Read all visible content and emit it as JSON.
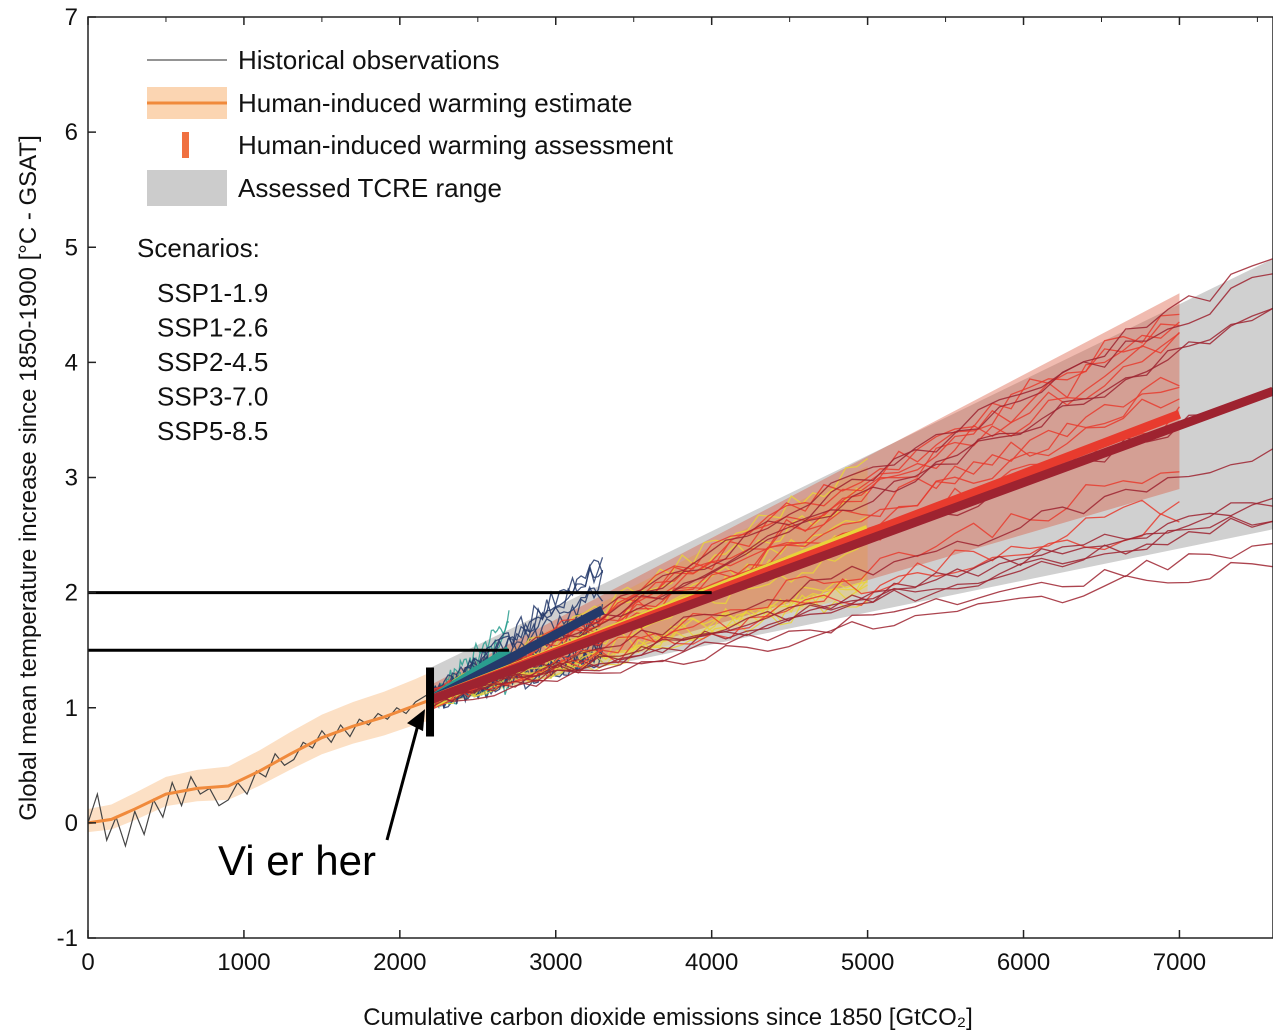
{
  "chart_data": {
    "type": "line",
    "xlabel": "Cumulative carbon dioxide emissions since 1850 [GtCO₂]",
    "ylabel": "Global mean temperature increase since 1850-1900 [°C - GSAT]",
    "xlim": [
      0,
      7600
    ],
    "ylim": [
      -1,
      7
    ],
    "x_ticks": [
      0,
      1000,
      2000,
      3000,
      4000,
      5000,
      6000,
      7000
    ],
    "y_ticks": [
      -1,
      0,
      1,
      2,
      3,
      4,
      5,
      6,
      7
    ],
    "grid": false,
    "legend": {
      "position": "top-left",
      "entries": [
        {
          "label": "Historical observations",
          "color": "#555555"
        },
        {
          "label": "Human-induced warming estimate",
          "color": "#f08a3c"
        },
        {
          "label": "Human-induced warming assessment",
          "color": "#f07040"
        },
        {
          "label": "Assessed TCRE range",
          "color": "#cccccc"
        }
      ],
      "scenarios_title": "Scenarios:",
      "scenarios": [
        {
          "name": "SSP1-1.9",
          "color": "#2a9d8f"
        },
        {
          "name": "SSP1-2.6",
          "color": "#243a6b"
        },
        {
          "name": "SSP2-4.5",
          "color": "#e8d33a"
        },
        {
          "name": "SSP3-7.0",
          "color": "#e83b2e"
        },
        {
          "name": "SSP5-8.5",
          "color": "#9e2330"
        }
      ]
    },
    "tcre_range": {
      "x": [
        2200,
        7600
      ],
      "lower": [
        1.05,
        2.55
      ],
      "upper": [
        1.35,
        4.9
      ]
    },
    "human_induced_estimate": {
      "x": [
        0,
        150,
        300,
        500,
        700,
        900,
        1100,
        1300,
        1500,
        1700,
        1900,
        2100,
        2200
      ],
      "y": [
        0.0,
        0.03,
        0.12,
        0.25,
        0.3,
        0.32,
        0.45,
        0.6,
        0.74,
        0.84,
        0.92,
        1.02,
        1.07
      ]
    },
    "historical_observations": {
      "x": [
        0,
        60,
        120,
        180,
        240,
        300,
        360,
        420,
        480,
        540,
        600,
        660,
        720,
        780,
        840,
        900,
        960,
        1020,
        1080,
        1140,
        1200,
        1260,
        1320,
        1380,
        1440,
        1500,
        1560,
        1620,
        1680,
        1740,
        1800,
        1860,
        1920,
        1980,
        2040,
        2100,
        2160,
        2220
      ],
      "y": [
        0.0,
        0.25,
        -0.15,
        0.05,
        -0.2,
        0.1,
        -0.1,
        0.2,
        0.05,
        0.35,
        0.15,
        0.4,
        0.25,
        0.3,
        0.15,
        0.2,
        0.35,
        0.25,
        0.45,
        0.4,
        0.6,
        0.5,
        0.55,
        0.7,
        0.65,
        0.8,
        0.7,
        0.85,
        0.75,
        0.9,
        0.85,
        0.95,
        0.9,
        1.0,
        0.95,
        1.05,
        1.1,
        1.15
      ]
    },
    "scenario_central": [
      {
        "name": "SSP1-1.9",
        "color": "#2a9d8f",
        "x": [
          2200,
          2700
        ],
        "y": [
          1.07,
          1.5
        ]
      },
      {
        "name": "SSP1-2.6",
        "color": "#243a6b",
        "x": [
          2200,
          3300
        ],
        "y": [
          1.07,
          1.85
        ]
      },
      {
        "name": "SSP2-4.5",
        "color": "#e8d33a",
        "x": [
          2200,
          5000
        ],
        "y": [
          1.07,
          2.55
        ]
      },
      {
        "name": "SSP3-7.0",
        "color": "#e83b2e",
        "x": [
          2200,
          7000
        ],
        "y": [
          1.07,
          3.55
        ]
      },
      {
        "name": "SSP5-8.5",
        "color": "#9e2330",
        "x": [
          2200,
          7600
        ],
        "y": [
          1.07,
          3.75
        ]
      }
    ],
    "scenario_ranges": [
      {
        "name": "SSP2-4.5",
        "color": "#f4c542",
        "x": [
          2200,
          5000
        ],
        "lower": [
          1.0,
          2.0
        ],
        "upper": [
          1.15,
          3.1
        ]
      },
      {
        "name": "SSP3-7.0",
        "color": "#d9553a",
        "x": [
          2200,
          7000
        ],
        "lower": [
          1.0,
          2.9
        ],
        "upper": [
          1.2,
          4.6
        ]
      }
    ],
    "annotations": {
      "text": "Vi er her",
      "arrow_target": {
        "x": 2200,
        "y": 0.45
      },
      "marker_x": 2200,
      "marker_y_range": [
        0.75,
        1.35
      ],
      "hlines": [
        {
          "y": 2.0,
          "x_end": 4000
        },
        {
          "y": 1.5,
          "x_end": 2700
        }
      ]
    }
  }
}
